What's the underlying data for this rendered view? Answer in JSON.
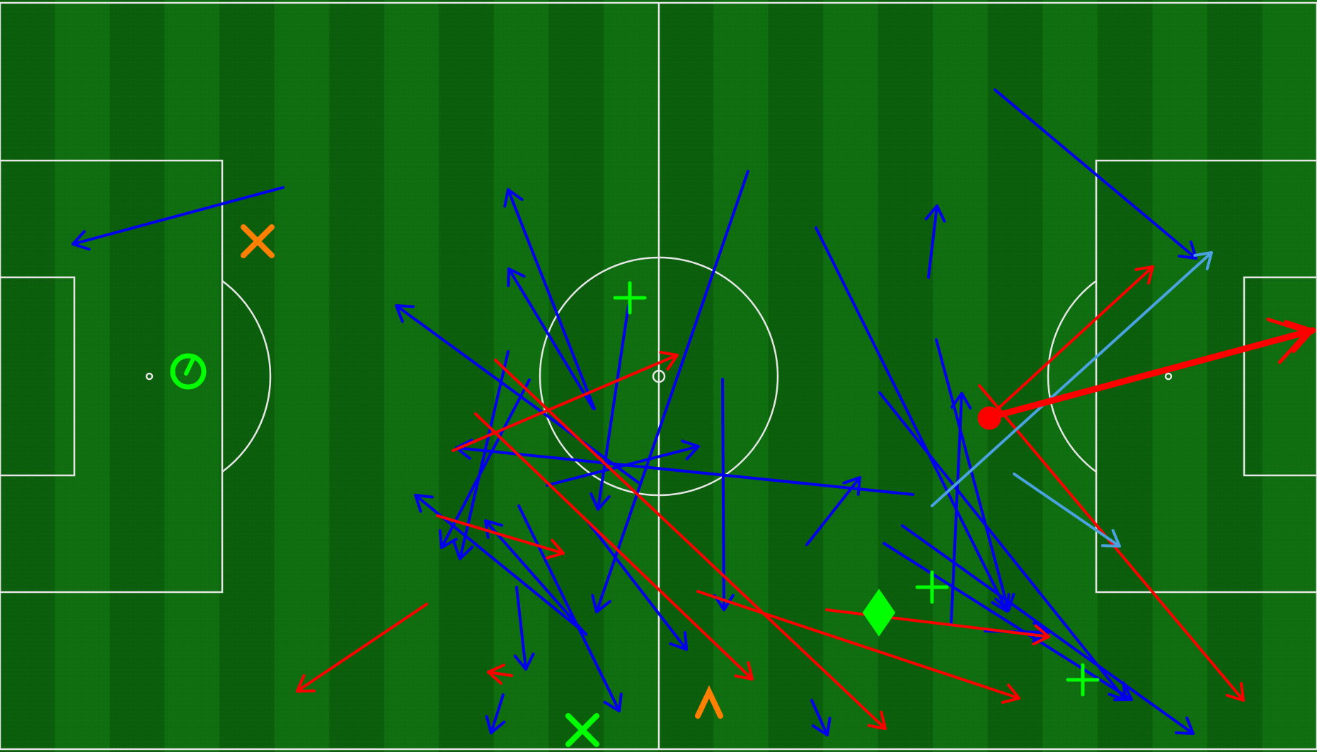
{
  "pitch": {
    "orientation": "horizontal",
    "colors": {
      "grass_dark": "#0b5e0b",
      "grass_light": "#0f6e0f",
      "lines": "#e6e6e6"
    }
  },
  "legend": {
    "pass_successful": "#0000ee",
    "pass_unsuccessful": "#ff0000",
    "pass_other": "#4aa3e0",
    "marker_green": "#00ff00",
    "marker_orange": "#ff7f00"
  },
  "event_markers": [
    {
      "type": "shot-icon",
      "color": "#00ff00"
    },
    {
      "type": "cross-icon",
      "color": "#ff7f00"
    },
    {
      "type": "plus-icon",
      "color": "#00ff00"
    },
    {
      "type": "plus-icon",
      "color": "#00ff00"
    },
    {
      "type": "plus-icon",
      "color": "#00ff00"
    },
    {
      "type": "diamond-icon",
      "color": "#00ff00"
    },
    {
      "type": "cross-icon",
      "color": "#00ff00"
    },
    {
      "type": "chevron-up-icon",
      "color": "#ff7f00"
    },
    {
      "type": "dot-icon",
      "color": "#ff0000"
    }
  ]
}
